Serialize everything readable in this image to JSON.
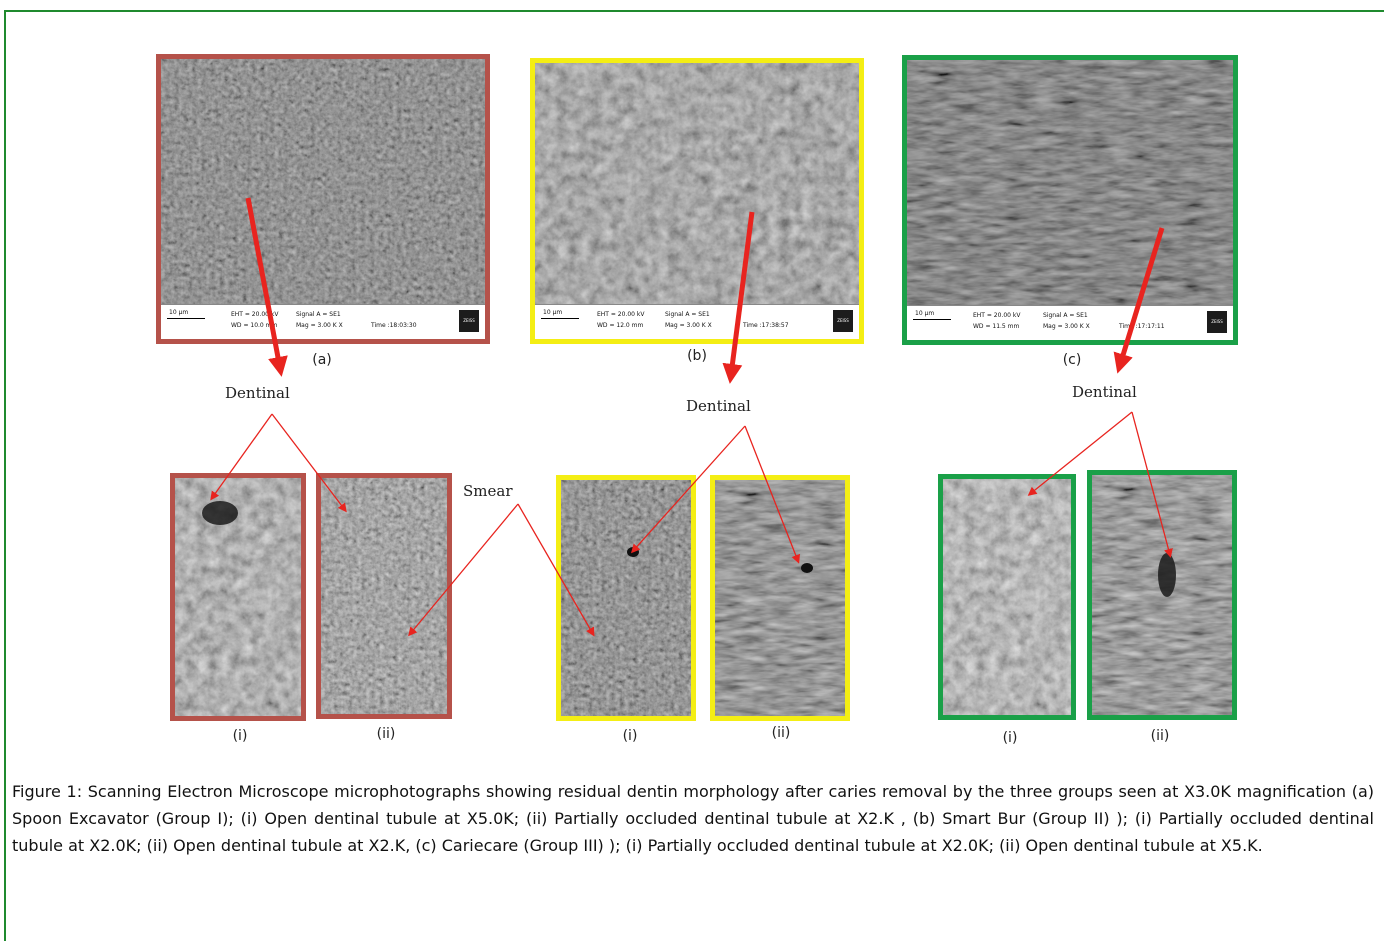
{
  "figure": {
    "top_labels": [
      "(a)",
      "(b)",
      "(c)"
    ],
    "sub_labels": [
      "(i)",
      "(ii)"
    ],
    "annotations": {
      "dentinal": "Dentinal",
      "smear": "Smear"
    },
    "sem_info": [
      {
        "scale": "10 µm",
        "eht": "EHT = 20.00 kV",
        "wd": "WD = 10.0 mm",
        "signal": "Signal A = SE1",
        "mag": "Mag =   3.00 K X",
        "time": "Time :18:03:30",
        "logo": "ZEISS"
      },
      {
        "scale": "10 µm",
        "eht": "EHT = 20.00 kV",
        "wd": "WD = 12.0 mm",
        "signal": "Signal A = SE1",
        "mag": "Mag =   3.00 K X",
        "time": "Time :17:38:57",
        "logo": "ZEISS"
      },
      {
        "scale": "10 µm",
        "eht": "EHT = 20.00 kV",
        "wd": "WD = 11.5 mm",
        "signal": "Signal A = SE1",
        "mag": "Mag =   3.00 K X",
        "time": "Time :17:17:11",
        "logo": "ZEISS"
      }
    ],
    "colors": {
      "group_1": "#b5524a",
      "group_2": "#f4ee14",
      "group_3": "#1aa048",
      "arrow": "#e8241f",
      "frame": "#1f8a2e"
    }
  },
  "caption": "Figure 1: Scanning Electron Microscope microphotographs showing residual dentin morphology after caries removal by the three groups seen at X3.0K magnification (a) Spoon Excavator (Group I); (i) Open dentinal tubule at X5.0K; (ii) Partially occluded dentinal tubule at X2.K , (b) Smart Bur (Group II) ); (i) Partially occluded dentinal tubule at X2.0K; (ii) Open dentinal tubule at X2.K, (c) Cariecare (Group III) ); (i) Partially occluded dentinal tubule at X2.0K; (ii) Open dentinal tubule at X5.K."
}
